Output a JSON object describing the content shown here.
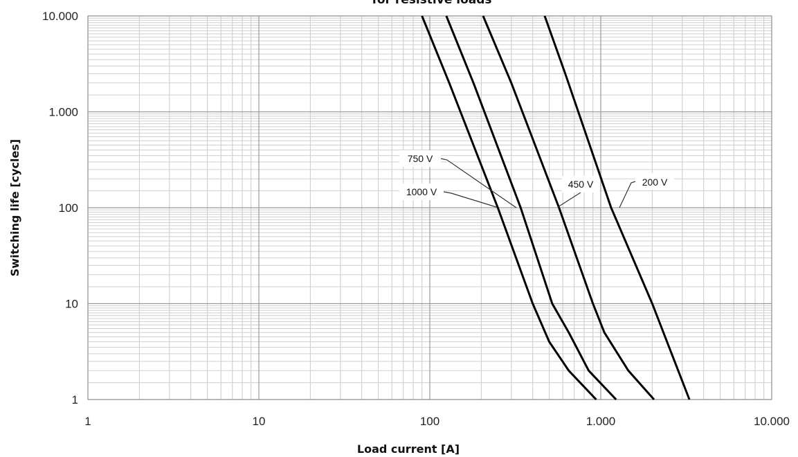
{
  "chart_data": {
    "type": "line",
    "title": "for resistive loads",
    "xlabel": "Load current [A]",
    "ylabel": "Switching life [cycles]",
    "x_scale": "log",
    "y_scale": "log",
    "xlim": [
      1,
      10000
    ],
    "ylim": [
      1,
      10000
    ],
    "grid": true,
    "x_ticks": [
      {
        "value": 1,
        "label": "1"
      },
      {
        "value": 10,
        "label": "10"
      },
      {
        "value": 100,
        "label": "100"
      },
      {
        "value": 1000,
        "label": "1.000"
      },
      {
        "value": 10000,
        "label": "10.000"
      }
    ],
    "y_ticks": [
      {
        "value": 1,
        "label": "1"
      },
      {
        "value": 10,
        "label": "10"
      },
      {
        "value": 100,
        "label": "100"
      },
      {
        "value": 1000,
        "label": "1.000"
      },
      {
        "value": 10000,
        "label": "10.000"
      }
    ],
    "series": [
      {
        "name": "1000 V",
        "color": "#000000",
        "points": [
          [
            90,
            10000
          ],
          [
            130,
            2000
          ],
          [
            250,
            100
          ],
          [
            400,
            10
          ],
          [
            500,
            4
          ],
          [
            650,
            2
          ],
          [
            940,
            1
          ]
        ]
      },
      {
        "name": "750 V",
        "color": "#000000",
        "points": [
          [
            125,
            10000
          ],
          [
            180,
            2000
          ],
          [
            340,
            100
          ],
          [
            520,
            10
          ],
          [
            650,
            5
          ],
          [
            850,
            2
          ],
          [
            1230,
            1
          ]
        ]
      },
      {
        "name": "450 V",
        "color": "#000000",
        "points": [
          [
            205,
            10000
          ],
          [
            300,
            2000
          ],
          [
            570,
            100
          ],
          [
            900,
            10
          ],
          [
            1050,
            5
          ],
          [
            1450,
            2
          ],
          [
            2050,
            1
          ]
        ]
      },
      {
        "name": "200 V",
        "color": "#000000",
        "points": [
          [
            470,
            10000
          ],
          [
            620,
            2500
          ],
          [
            1150,
            100
          ],
          [
            2000,
            10
          ],
          [
            3300,
            1
          ]
        ]
      }
    ]
  }
}
